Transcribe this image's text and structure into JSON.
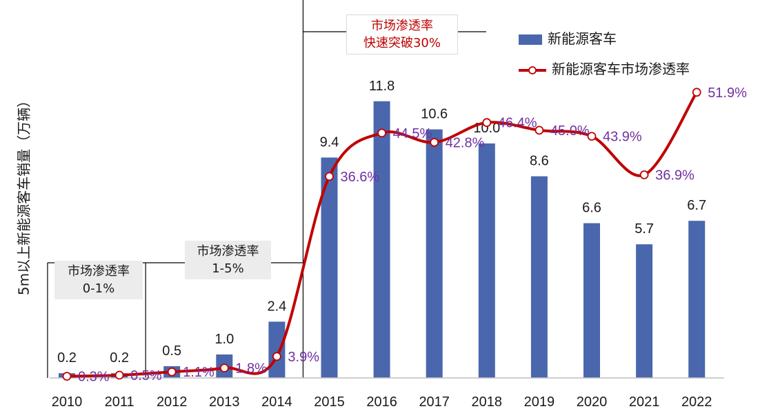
{
  "chart_data": {
    "type": "bar+line",
    "categories": [
      "2010",
      "2011",
      "2012",
      "2013",
      "2014",
      "2015",
      "2016",
      "2017",
      "2018",
      "2019",
      "2020",
      "2021",
      "2022"
    ],
    "series": [
      {
        "name": "新能源客车",
        "type": "bar",
        "color": "#4a67ad",
        "values": [
          0.2,
          0.2,
          0.5,
          1.0,
          2.4,
          9.4,
          11.8,
          10.6,
          10.0,
          8.6,
          6.6,
          5.7,
          6.7
        ],
        "labels": [
          "0.2",
          "0.2",
          "0.5",
          "1.0",
          "2.4",
          "9.4",
          "11.8",
          "10.6",
          "10.0",
          "8.6",
          "6.6",
          "5.7",
          "6.7"
        ]
      },
      {
        "name": "新能源客车市场渗透率",
        "type": "line",
        "color": "#c00000",
        "label_color": "#7030a0",
        "values": [
          0.3,
          0.5,
          1.1,
          1.8,
          3.9,
          36.6,
          44.5,
          42.8,
          46.4,
          45.0,
          43.9,
          36.9,
          51.9
        ],
        "labels": [
          "0.3%",
          "0.5%",
          "1.1%",
          "1.8%",
          "3.9%",
          "36.6%",
          "44.5%",
          "42.8%",
          "46.4%",
          "45.0%",
          "43.9%",
          "36.9%",
          "51.9%"
        ]
      }
    ],
    "ylabel": "5m以上新能源客车销量（万辆）",
    "legend_position": "top-right",
    "grid": false,
    "annotations": [
      {
        "text_line1": "市场渗透率",
        "text_line2": "0-1%"
      },
      {
        "text_line1": "市场渗透率",
        "text_line2": "1-5%"
      },
      {
        "text_line1": "市场渗透率",
        "text_line2": "快速突破30%"
      }
    ]
  }
}
